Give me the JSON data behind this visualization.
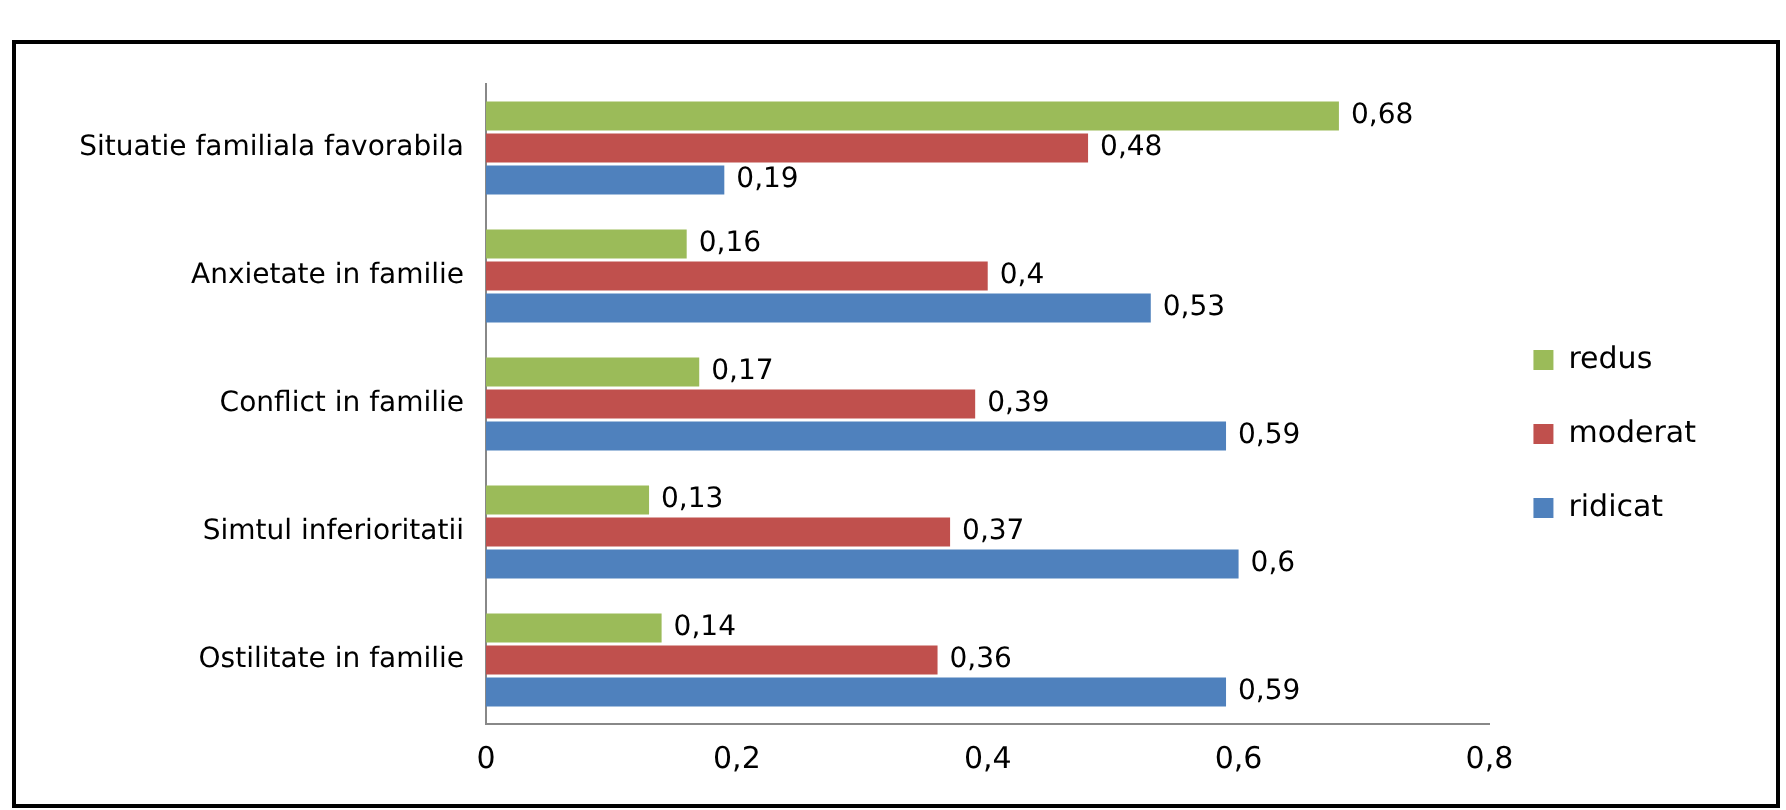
{
  "chart_data": {
    "type": "bar",
    "orientation": "horizontal",
    "categories": [
      "Situatie familiala favorabila",
      "Anxietate in familie",
      "Conflict in familie",
      "Simtul inferioritatii",
      "Ostilitate in familie"
    ],
    "series": [
      {
        "name": "redus",
        "color": "#9bbb59",
        "values": [
          0.68,
          0.16,
          0.17,
          0.13,
          0.14
        ],
        "value_labels": [
          "0,68",
          "0,16",
          "0,17",
          "0,13",
          "0,14"
        ]
      },
      {
        "name": "moderat",
        "color": "#c0504d",
        "values": [
          0.48,
          0.4,
          0.39,
          0.37,
          0.36
        ],
        "value_labels": [
          "0,48",
          "0,4",
          "0,39",
          "0,37",
          "0,36"
        ]
      },
      {
        "name": "ridicat",
        "color": "#4f81bd",
        "values": [
          0.19,
          0.53,
          0.59,
          0.6,
          0.59
        ],
        "value_labels": [
          "0,19",
          "0,53",
          "0,59",
          "0,6",
          "0,59"
        ]
      }
    ],
    "xlim": [
      0,
      0.8
    ],
    "xticks": [
      0,
      {
        "value": 0.2,
        "label": "0,2"
      },
      {
        "value": 0.4,
        "label": "0,4"
      },
      {
        "value": 0.6,
        "label": "0,6"
      },
      {
        "value": 0.8,
        "label": "0,8"
      }
    ],
    "grid": false,
    "legend": "right"
  }
}
